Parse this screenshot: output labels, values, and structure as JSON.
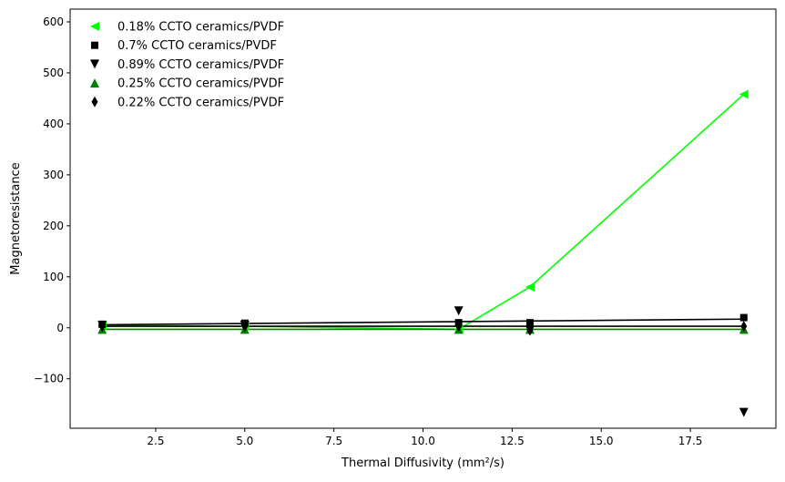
{
  "chart_data": {
    "type": "scatter",
    "title": "",
    "xlabel": "Thermal Diffusivity (mm²/s)",
    "ylabel": "Magnetoresistance",
    "xlim": [
      0.1,
      19.9
    ],
    "ylim": [
      -197,
      625
    ],
    "xticks": [
      2.5,
      5.0,
      7.5,
      10.0,
      12.5,
      15.0,
      17.5
    ],
    "xtick_labels": [
      "2.5",
      "5.0",
      "7.5",
      "10.0",
      "12.5",
      "15.0",
      "17.5"
    ],
    "yticks": [
      -100,
      0,
      100,
      200,
      300,
      400,
      500,
      600
    ],
    "ytick_labels": [
      "−100",
      "0",
      "100",
      "200",
      "300",
      "400",
      "500",
      "600"
    ],
    "grid": false,
    "legend_position": "top-left",
    "series": [
      {
        "name": "0.18% CCTO ceramics/PVDF",
        "color": "#00ff00",
        "marker": "triangle-left",
        "x": [
          1,
          5,
          11,
          13,
          19
        ],
        "y": [
          4,
          3,
          -3,
          80,
          458
        ],
        "fit": {
          "x": [
            1,
            5,
            11,
            13,
            19
          ],
          "y": [
            4,
            3,
            -3,
            80,
            458
          ],
          "color": "#00ff00"
        }
      },
      {
        "name": "0.7% CCTO ceramics/PVDF",
        "color": "#000000",
        "marker": "square",
        "x": [
          1,
          5,
          11,
          13,
          19
        ],
        "y": [
          7,
          9,
          10,
          10,
          20
        ],
        "fit": {
          "x": [
            1,
            19
          ],
          "y": [
            6,
            17
          ],
          "color": "#000000"
        }
      },
      {
        "name": "0.89% CCTO ceramics/PVDF",
        "color": "#000000",
        "marker": "triangle-down",
        "x": [
          1,
          5,
          11,
          13,
          19
        ],
        "y": [
          5,
          5,
          33,
          -5,
          -166
        ],
        "fit": null
      },
      {
        "name": "0.25% CCTO ceramics/PVDF",
        "color": "#008000",
        "marker": "triangle-up",
        "x": [
          1,
          5,
          11,
          13,
          19
        ],
        "y": [
          -3,
          -3,
          -3,
          -3,
          -3
        ],
        "fit": {
          "x": [
            1,
            19
          ],
          "y": [
            -3,
            -3
          ],
          "color": "#008000"
        }
      },
      {
        "name": "0.22% CCTO ceramics/PVDF",
        "color": "#000000",
        "marker": "thin-diamond",
        "x": [
          1,
          5,
          11,
          13,
          19
        ],
        "y": [
          3,
          3,
          3,
          -5,
          3
        ],
        "fit": {
          "x": [
            1,
            19
          ],
          "y": [
            3,
            3
          ],
          "color": "#000000"
        }
      }
    ]
  }
}
